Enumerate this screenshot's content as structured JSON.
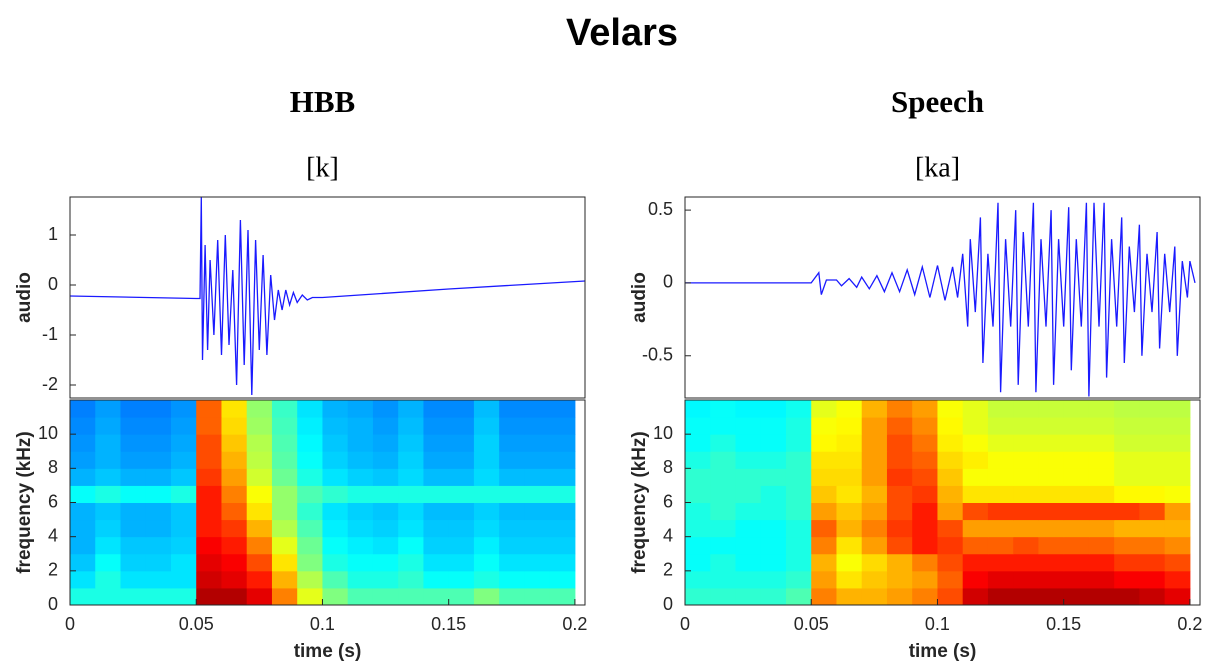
{
  "title": "Velars",
  "chart_data": [
    {
      "type": "line",
      "title": "HBB",
      "subtitle": "[k]",
      "ylabel": "audio",
      "color": "#1a1aff",
      "x": [
        0,
        0.05,
        0.0515,
        0.052,
        0.0525,
        0.0535,
        0.0545,
        0.0555,
        0.057,
        0.0585,
        0.06,
        0.0615,
        0.063,
        0.0645,
        0.066,
        0.0675,
        0.069,
        0.0705,
        0.072,
        0.0735,
        0.075,
        0.0765,
        0.078,
        0.0795,
        0.081,
        0.0825,
        0.084,
        0.0855,
        0.087,
        0.0885,
        0.09,
        0.092,
        0.094,
        0.096,
        0.1,
        0.15,
        0.204
      ],
      "values": [
        -0.22,
        -0.27,
        -0.27,
        1.75,
        -1.5,
        0.8,
        -1.3,
        0.5,
        -1.0,
        0.9,
        -1.4,
        1.0,
        -1.2,
        0.3,
        -2.0,
        1.3,
        -1.6,
        1.1,
        -2.2,
        0.9,
        -1.3,
        0.6,
        -1.4,
        0.2,
        -0.7,
        -0.1,
        -0.5,
        -0.1,
        -0.4,
        -0.15,
        -0.35,
        -0.2,
        -0.3,
        -0.25,
        -0.25,
        -0.08,
        0.08
      ],
      "xlim": [
        0,
        0.204
      ],
      "ylim": [
        -2.26,
        1.76
      ],
      "yticks": [
        -2,
        -1,
        0,
        1
      ]
    },
    {
      "type": "heatmap",
      "ylabel": "frequency (kHz)",
      "xlabel": "time (s)",
      "colormap": "jet",
      "zlim": [
        0,
        1
      ],
      "xbins": [
        0,
        0.01,
        0.02,
        0.03,
        0.04,
        0.05,
        0.06,
        0.07,
        0.08,
        0.09,
        0.1,
        0.11,
        0.12,
        0.13,
        0.14,
        0.15,
        0.16,
        0.17,
        0.18,
        0.19,
        0.2
      ],
      "ybins": [
        0,
        1,
        2,
        3,
        4,
        5,
        6,
        7,
        8,
        9,
        10,
        11,
        12
      ],
      "z": [
        [
          0.4,
          0.4,
          0.4,
          0.4,
          0.4,
          0.95,
          0.95,
          0.9,
          0.75,
          0.6,
          0.5,
          0.45,
          0.45,
          0.45,
          0.45,
          0.45,
          0.5,
          0.45,
          0.45,
          0.45
        ],
        [
          0.35,
          0.4,
          0.35,
          0.35,
          0.35,
          0.92,
          0.9,
          0.85,
          0.7,
          0.55,
          0.45,
          0.4,
          0.4,
          0.42,
          0.38,
          0.38,
          0.4,
          0.38,
          0.38,
          0.38
        ],
        [
          0.32,
          0.38,
          0.33,
          0.33,
          0.35,
          0.9,
          0.88,
          0.8,
          0.65,
          0.5,
          0.4,
          0.38,
          0.38,
          0.4,
          0.35,
          0.35,
          0.38,
          0.35,
          0.35,
          0.35
        ],
        [
          0.3,
          0.35,
          0.32,
          0.32,
          0.33,
          0.88,
          0.85,
          0.75,
          0.6,
          0.48,
          0.38,
          0.36,
          0.35,
          0.38,
          0.33,
          0.33,
          0.36,
          0.33,
          0.33,
          0.33
        ],
        [
          0.3,
          0.33,
          0.3,
          0.3,
          0.32,
          0.85,
          0.82,
          0.7,
          0.55,
          0.45,
          0.36,
          0.34,
          0.33,
          0.35,
          0.32,
          0.32,
          0.34,
          0.32,
          0.32,
          0.32
        ],
        [
          0.3,
          0.32,
          0.3,
          0.3,
          0.32,
          0.85,
          0.78,
          0.65,
          0.52,
          0.42,
          0.35,
          0.33,
          0.32,
          0.34,
          0.31,
          0.31,
          0.33,
          0.31,
          0.31,
          0.31
        ],
        [
          0.38,
          0.4,
          0.38,
          0.38,
          0.4,
          0.85,
          0.75,
          0.62,
          0.52,
          0.45,
          0.42,
          0.4,
          0.4,
          0.4,
          0.4,
          0.4,
          0.4,
          0.4,
          0.4,
          0.4
        ],
        [
          0.3,
          0.32,
          0.3,
          0.3,
          0.32,
          0.82,
          0.72,
          0.58,
          0.48,
          0.4,
          0.35,
          0.33,
          0.32,
          0.34,
          0.31,
          0.31,
          0.34,
          0.31,
          0.31,
          0.31
        ],
        [
          0.28,
          0.3,
          0.28,
          0.28,
          0.3,
          0.8,
          0.7,
          0.56,
          0.46,
          0.38,
          0.33,
          0.31,
          0.3,
          0.33,
          0.29,
          0.29,
          0.33,
          0.29,
          0.29,
          0.29
        ],
        [
          0.27,
          0.3,
          0.27,
          0.27,
          0.29,
          0.8,
          0.68,
          0.55,
          0.45,
          0.37,
          0.32,
          0.3,
          0.29,
          0.32,
          0.28,
          0.28,
          0.33,
          0.28,
          0.28,
          0.28
        ],
        [
          0.26,
          0.29,
          0.26,
          0.26,
          0.28,
          0.78,
          0.66,
          0.53,
          0.44,
          0.36,
          0.31,
          0.3,
          0.28,
          0.31,
          0.27,
          0.27,
          0.32,
          0.27,
          0.27,
          0.27
        ],
        [
          0.25,
          0.28,
          0.25,
          0.25,
          0.27,
          0.78,
          0.65,
          0.52,
          0.43,
          0.35,
          0.3,
          0.29,
          0.27,
          0.3,
          0.26,
          0.26,
          0.31,
          0.26,
          0.26,
          0.26
        ]
      ],
      "xlim": [
        0,
        0.204
      ],
      "ylim": [
        0,
        12
      ],
      "xticks": [
        0,
        0.05,
        0.1,
        0.15,
        0.2
      ],
      "yticks": [
        0,
        2,
        4,
        6,
        8,
        10
      ]
    },
    {
      "type": "line",
      "title": "Speech",
      "subtitle": "[ka]",
      "ylabel": "audio",
      "color": "#1a1aff",
      "x": [
        0,
        0.05,
        0.053,
        0.054,
        0.056,
        0.06,
        0.062,
        0.065,
        0.068,
        0.07,
        0.073,
        0.076,
        0.079,
        0.082,
        0.085,
        0.088,
        0.091,
        0.094,
        0.097,
        0.1,
        0.103,
        0.106,
        0.108,
        0.11,
        0.112,
        0.113,
        0.115,
        0.117,
        0.118,
        0.12,
        0.122,
        0.124,
        0.125,
        0.127,
        0.129,
        0.131,
        0.132,
        0.134,
        0.136,
        0.138,
        0.139,
        0.141,
        0.143,
        0.145,
        0.146,
        0.148,
        0.15,
        0.152,
        0.153,
        0.155,
        0.157,
        0.159,
        0.16,
        0.162,
        0.164,
        0.166,
        0.167,
        0.169,
        0.171,
        0.173,
        0.174,
        0.176,
        0.178,
        0.18,
        0.181,
        0.183,
        0.185,
        0.187,
        0.188,
        0.19,
        0.192,
        0.194,
        0.195,
        0.197,
        0.199,
        0.2,
        0.202
      ],
      "values": [
        0,
        0,
        0.07,
        -0.08,
        0.02,
        0.02,
        -0.02,
        0.03,
        -0.03,
        0.04,
        -0.04,
        0.05,
        -0.06,
        0.07,
        -0.06,
        0.09,
        -0.08,
        0.11,
        -0.1,
        0.12,
        -0.12,
        0.11,
        -0.1,
        0.2,
        -0.3,
        0.3,
        -0.2,
        0.45,
        -0.55,
        0.2,
        -0.3,
        0.55,
        -0.75,
        0.3,
        -0.3,
        0.5,
        -0.7,
        0.35,
        -0.3,
        0.55,
        -0.75,
        0.3,
        -0.3,
        0.5,
        -0.7,
        0.3,
        -0.3,
        0.52,
        -0.6,
        0.3,
        -0.3,
        0.55,
        -0.78,
        0.55,
        -0.3,
        0.55,
        -0.65,
        0.3,
        -0.3,
        0.45,
        -0.55,
        0.25,
        -0.2,
        0.4,
        -0.5,
        0.2,
        -0.2,
        0.35,
        -0.45,
        0.2,
        -0.2,
        0.25,
        -0.5,
        0.15,
        -0.1,
        0.15,
        0
      ],
      "xlim": [
        0,
        0.204
      ],
      "ylim": [
        -0.79,
        0.59
      ],
      "yticks": [
        -0.5,
        0,
        0.5
      ]
    },
    {
      "type": "heatmap",
      "ylabel": "frequency (kHz)",
      "xlabel": "time (s)",
      "colormap": "jet",
      "zlim": [
        0,
        1
      ],
      "xbins": [
        0,
        0.01,
        0.02,
        0.03,
        0.04,
        0.05,
        0.06,
        0.07,
        0.08,
        0.09,
        0.1,
        0.11,
        0.12,
        0.13,
        0.14,
        0.15,
        0.16,
        0.17,
        0.18,
        0.19,
        0.2
      ],
      "ybins": [
        0,
        1,
        2,
        3,
        4,
        5,
        6,
        7,
        8,
        9,
        10,
        11,
        12
      ],
      "z": [
        [
          0.42,
          0.42,
          0.42,
          0.42,
          0.45,
          0.75,
          0.7,
          0.7,
          0.72,
          0.75,
          0.8,
          0.92,
          0.95,
          0.95,
          0.95,
          0.95,
          0.95,
          0.95,
          0.93,
          0.9
        ],
        [
          0.4,
          0.4,
          0.4,
          0.4,
          0.42,
          0.72,
          0.65,
          0.68,
          0.7,
          0.72,
          0.78,
          0.88,
          0.9,
          0.9,
          0.9,
          0.9,
          0.9,
          0.88,
          0.88,
          0.85
        ],
        [
          0.38,
          0.4,
          0.38,
          0.38,
          0.4,
          0.7,
          0.62,
          0.66,
          0.7,
          0.75,
          0.8,
          0.85,
          0.85,
          0.85,
          0.85,
          0.85,
          0.85,
          0.82,
          0.82,
          0.8
        ],
        [
          0.38,
          0.38,
          0.38,
          0.38,
          0.4,
          0.75,
          0.65,
          0.72,
          0.8,
          0.85,
          0.82,
          0.78,
          0.78,
          0.8,
          0.78,
          0.78,
          0.78,
          0.76,
          0.76,
          0.74
        ],
        [
          0.4,
          0.4,
          0.38,
          0.38,
          0.4,
          0.78,
          0.7,
          0.75,
          0.82,
          0.85,
          0.8,
          0.72,
          0.72,
          0.72,
          0.72,
          0.72,
          0.72,
          0.7,
          0.7,
          0.7
        ],
        [
          0.4,
          0.42,
          0.4,
          0.4,
          0.42,
          0.72,
          0.68,
          0.72,
          0.8,
          0.85,
          0.72,
          0.8,
          0.82,
          0.82,
          0.82,
          0.82,
          0.82,
          0.82,
          0.8,
          0.72
        ],
        [
          0.42,
          0.42,
          0.42,
          0.4,
          0.42,
          0.68,
          0.65,
          0.7,
          0.8,
          0.82,
          0.7,
          0.65,
          0.65,
          0.65,
          0.65,
          0.65,
          0.65,
          0.63,
          0.63,
          0.62
        ],
        [
          0.42,
          0.42,
          0.42,
          0.42,
          0.42,
          0.66,
          0.66,
          0.72,
          0.82,
          0.8,
          0.68,
          0.62,
          0.62,
          0.62,
          0.62,
          0.62,
          0.62,
          0.6,
          0.6,
          0.6
        ],
        [
          0.4,
          0.42,
          0.4,
          0.4,
          0.42,
          0.65,
          0.65,
          0.72,
          0.8,
          0.78,
          0.66,
          0.64,
          0.62,
          0.62,
          0.62,
          0.62,
          0.62,
          0.6,
          0.6,
          0.6
        ],
        [
          0.38,
          0.4,
          0.38,
          0.38,
          0.4,
          0.63,
          0.64,
          0.72,
          0.8,
          0.76,
          0.64,
          0.62,
          0.6,
          0.6,
          0.6,
          0.6,
          0.6,
          0.58,
          0.58,
          0.58
        ],
        [
          0.38,
          0.38,
          0.38,
          0.38,
          0.4,
          0.62,
          0.63,
          0.72,
          0.78,
          0.74,
          0.63,
          0.6,
          0.58,
          0.58,
          0.58,
          0.58,
          0.58,
          0.57,
          0.57,
          0.57
        ],
        [
          0.37,
          0.38,
          0.37,
          0.37,
          0.39,
          0.6,
          0.62,
          0.7,
          0.75,
          0.72,
          0.62,
          0.6,
          0.57,
          0.57,
          0.57,
          0.57,
          0.57,
          0.56,
          0.56,
          0.56
        ]
      ],
      "xlim": [
        0,
        0.204
      ],
      "ylim": [
        0,
        12
      ],
      "xticks": [
        0,
        0.05,
        0.1,
        0.15,
        0.2
      ],
      "yticks": [
        0,
        2,
        4,
        6,
        8,
        10
      ]
    }
  ]
}
